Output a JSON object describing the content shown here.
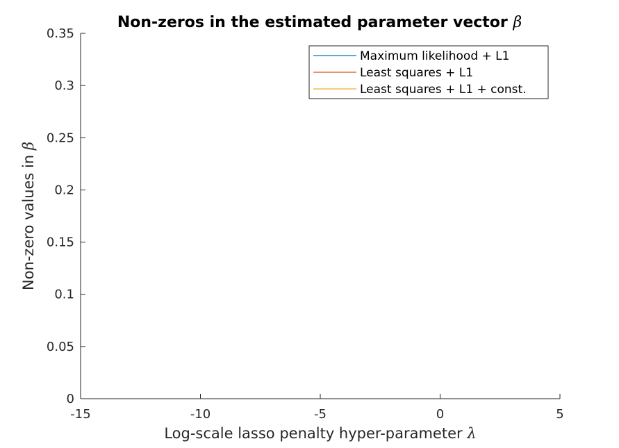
{
  "chart_data": {
    "type": "line",
    "title": "Non-zeros in the estimated parameter vector",
    "title_symbol": "β",
    "xlabel": "Log-scale lasso penalty hyper-parameter",
    "xlabel_symbol": "λ",
    "ylabel": "Non-zero values in",
    "ylabel_symbol": "β",
    "xlim": [
      -15,
      5
    ],
    "ylim": [
      0,
      0.35
    ],
    "xticks": [
      -15,
      -10,
      -5,
      0,
      5
    ],
    "xtick_labels": [
      "-15",
      "-10",
      "-5",
      "0",
      "5"
    ],
    "yticks": [
      0,
      0.05,
      0.1,
      0.15,
      0.2,
      0.25,
      0.3,
      0.35
    ],
    "ytick_labels": [
      "0",
      "0.05",
      "0.1",
      "0.15",
      "0.2",
      "0.25",
      "0.3",
      "0.35"
    ],
    "grid": false,
    "legend_position": "top-right",
    "series": [
      {
        "name": "Maximum likelihood + L1",
        "color": "#0072BD",
        "x": [],
        "y": []
      },
      {
        "name": "Least squares + L1",
        "color": "#D95319",
        "x": [],
        "y": []
      },
      {
        "name": "Least squares + L1 + const.",
        "color": "#EDB120",
        "x": [],
        "y": []
      }
    ]
  }
}
